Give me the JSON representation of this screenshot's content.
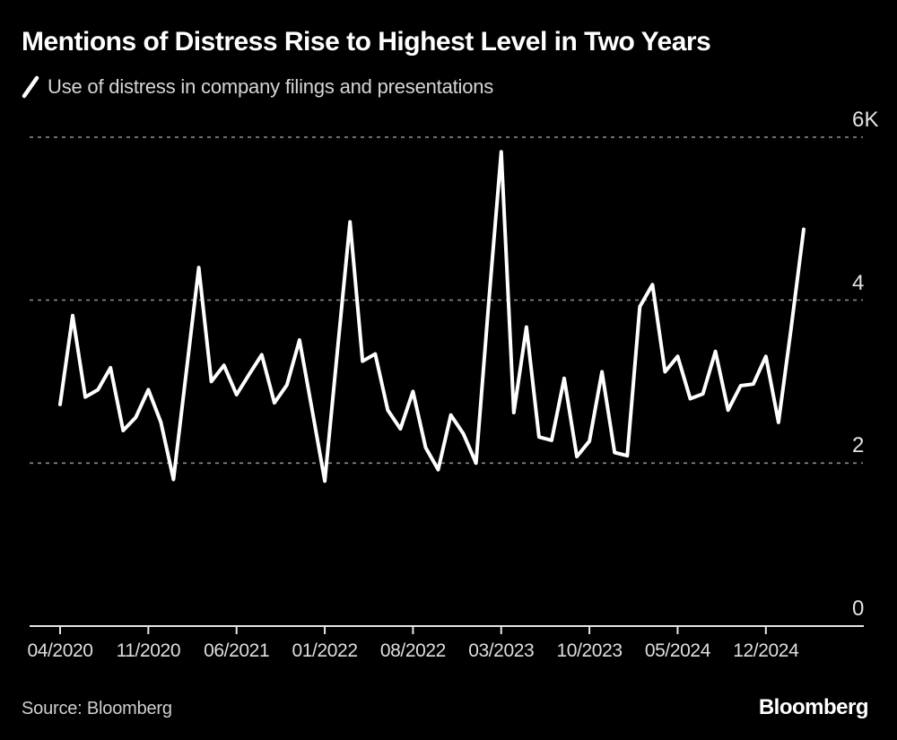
{
  "header": {
    "title": "Mentions of Distress Rise to Highest Level in Two Years",
    "legend": {
      "mark": "diagonal-line-swatch",
      "label": "Use of distress in company filings and presentations"
    }
  },
  "chart_data": {
    "type": "line",
    "title": "Mentions of Distress Rise to Highest Level in Two Years",
    "series": [
      {
        "name": "Use of distress in company filings and presentations",
        "color": "#ffffff",
        "values": [
          2720,
          3810,
          2810,
          2900,
          3170,
          2400,
          2560,
          2900,
          2500,
          1800,
          3100,
          4400,
          3000,
          3200,
          2840,
          3090,
          3330,
          2740,
          2960,
          3510,
          2650,
          1780,
          3370,
          4960,
          3250,
          3340,
          2650,
          2420,
          2880,
          2190,
          1920,
          2590,
          2360,
          2000,
          3950,
          5820,
          2620,
          3670,
          2320,
          2280,
          3040,
          2080,
          2270,
          3120,
          2130,
          2090,
          3920,
          4190,
          3120,
          3310,
          2790,
          2850,
          3370,
          2650,
          2950,
          2970,
          3310,
          2500,
          3650,
          4870
        ]
      }
    ],
    "x": [
      "04/2020",
      "05/2020",
      "06/2020",
      "07/2020",
      "08/2020",
      "09/2020",
      "10/2020",
      "11/2020",
      "12/2020",
      "01/2021",
      "02/2021",
      "03/2021",
      "04/2021",
      "05/2021",
      "06/2021",
      "07/2021",
      "08/2021",
      "09/2021",
      "10/2021",
      "11/2021",
      "12/2021",
      "01/2022",
      "02/2022",
      "03/2022",
      "04/2022",
      "05/2022",
      "06/2022",
      "07/2022",
      "08/2022",
      "09/2022",
      "10/2022",
      "11/2022",
      "12/2022",
      "01/2023",
      "02/2023",
      "03/2023",
      "04/2023",
      "05/2023",
      "06/2023",
      "07/2023",
      "08/2023",
      "09/2023",
      "10/2023",
      "11/2023",
      "12/2023",
      "01/2024",
      "02/2024",
      "03/2024",
      "04/2024",
      "05/2024",
      "06/2024",
      "07/2024",
      "08/2024",
      "09/2024",
      "10/2024",
      "11/2024",
      "12/2024",
      "01/2025",
      "02/2025",
      "03/2025"
    ],
    "x_tick_labels": [
      "04/2020",
      "11/2020",
      "06/2021",
      "01/2022",
      "08/2022",
      "03/2023",
      "10/2023",
      "05/2024",
      "12/2024"
    ],
    "x_tick_step": 7,
    "y_ticks": [
      {
        "value": 6000,
        "label": "6K"
      },
      {
        "value": 4000,
        "label": "4"
      },
      {
        "value": 2000,
        "label": "2"
      },
      {
        "value": 0,
        "label": "0"
      }
    ],
    "ylim": [
      0,
      6000
    ],
    "grid": "dashed-horizontal",
    "legend_position": "top-left"
  },
  "footer": {
    "source": "Source: Bloomberg",
    "brand": "Bloomberg"
  },
  "colors": {
    "background": "#000000",
    "title": "#ffffff",
    "subtitle": "#d6d6d6",
    "grid": "#8a8a8a",
    "axis": "#e6e6e6",
    "tick_label": "#dedede",
    "line": "#ffffff"
  }
}
